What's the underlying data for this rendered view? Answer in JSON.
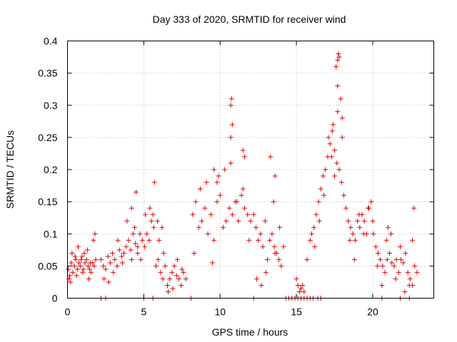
{
  "chart_data": {
    "type": "scatter",
    "title": "Day 333 of 2020, SRMTID for receiver wind",
    "xlabel": "GPS time / hours",
    "ylabel": "SRMTID / TECUs",
    "xlim": [
      0,
      24
    ],
    "ylim": [
      0,
      0.4
    ],
    "xticks": [
      0,
      5,
      10,
      15,
      20
    ],
    "xtick_labels": [
      "0",
      "5",
      "10",
      "15",
      "20"
    ],
    "yticks": [
      0,
      0.05,
      0.1,
      0.15,
      0.2,
      0.25,
      0.3,
      0.35,
      0.4
    ],
    "ytick_labels": [
      "0",
      "0.05",
      "0.1",
      "0.15",
      "0.2",
      "0.25",
      "0.3",
      "0.35",
      "0.4"
    ],
    "grid": true,
    "marker": "+",
    "color": "#e00000",
    "series": [
      {
        "name": "SRMTID",
        "x": [
          0.05,
          0.15,
          0.25,
          0.35,
          0.45,
          0.55,
          0.65,
          0.75,
          0.85,
          0.95,
          1.05,
          1.15,
          1.25,
          1.35,
          1.45,
          1.55,
          1.65,
          1.75,
          1.85,
          0.1,
          0.3,
          0.5,
          0.7,
          0.9,
          1.1,
          1.3,
          1.5,
          1.7,
          0.2,
          0.6,
          1.0,
          1.4,
          1.8,
          2.2,
          2.35,
          2.5,
          2.65,
          2.8,
          2.95,
          3.1,
          3.25,
          3.4,
          3.55,
          3.7,
          3.85,
          4.0,
          4.15,
          4.3,
          4.45,
          4.6,
          4.75,
          4.9,
          2.4,
          2.7,
          3.0,
          3.3,
          3.6,
          3.9,
          4.2,
          4.5,
          4.8,
          4.2,
          4.4,
          4.6,
          5.05,
          5.2,
          5.35,
          5.5,
          5.65,
          5.8,
          5.95,
          6.1,
          6.25,
          6.4,
          6.55,
          6.7,
          6.85,
          7.0,
          7.15,
          7.3,
          7.45,
          7.6,
          7.75,
          5.1,
          5.4,
          5.7,
          6.0,
          6.3,
          6.6,
          6.9,
          7.2,
          7.5,
          5.6,
          5.9,
          6.2,
          8.2,
          8.4,
          8.6,
          8.8,
          9.0,
          9.2,
          9.4,
          9.6,
          9.8,
          10.0,
          10.2,
          10.4,
          10.6,
          10.8,
          11.0,
          11.2,
          11.4,
          11.6,
          11.8,
          12.0,
          8.3,
          8.7,
          9.1,
          9.5,
          9.9,
          10.3,
          10.7,
          11.1,
          11.5,
          11.9,
          10.7,
          10.75,
          10.8,
          10.7,
          11.5,
          11.6,
          9.6,
          9.8,
          12.2,
          12.35,
          12.5,
          12.65,
          12.8,
          12.95,
          13.1,
          13.25,
          13.4,
          13.55,
          13.7,
          13.85,
          14.0,
          14.15,
          12.4,
          12.7,
          13.0,
          13.3,
          13.6,
          13.9,
          13.5,
          13.6,
          15.0,
          15.1,
          15.2,
          15.3,
          15.4,
          15.5,
          15.7,
          15.9,
          16.0,
          16.15,
          16.3,
          16.45,
          16.6,
          16.75,
          16.9,
          17.05,
          17.2,
          17.35,
          17.5,
          17.65,
          17.8,
          17.95,
          18.1,
          18.25,
          16.2,
          16.5,
          16.8,
          17.1,
          17.4,
          17.7,
          18.0,
          17.6,
          17.7,
          17.75,
          17.8,
          17.7,
          17.9,
          18.0,
          17.3,
          17.5,
          18.4,
          18.55,
          18.7,
          18.85,
          19.0,
          19.15,
          19.3,
          19.45,
          19.6,
          19.75,
          19.9,
          20.05,
          20.2,
          20.35,
          18.5,
          18.8,
          19.1,
          19.4,
          19.7,
          20.0,
          20.3,
          20.5,
          20.65,
          20.8,
          20.95,
          21.1,
          21.25,
          21.4,
          21.55,
          21.7,
          21.85,
          22.0,
          22.15,
          22.3,
          22.45,
          22.6,
          22.75,
          22.9,
          20.6,
          20.9,
          21.2,
          21.5,
          21.8,
          22.1,
          22.4,
          22.7,
          21.0,
          22.6,
          2.2,
          2.5,
          5.0,
          5.6,
          8.1,
          12.2,
          14.3,
          14.5,
          14.7,
          14.9,
          15.1,
          15.3,
          15.5,
          15.7,
          15.9,
          16.1,
          16.4,
          16.6,
          20.6,
          21.8,
          22.4
        ],
        "y": [
          0.045,
          0.035,
          0.055,
          0.04,
          0.05,
          0.06,
          0.045,
          0.055,
          0.05,
          0.065,
          0.045,
          0.055,
          0.06,
          0.05,
          0.045,
          0.04,
          0.055,
          0.05,
          0.06,
          0.03,
          0.07,
          0.065,
          0.08,
          0.06,
          0.07,
          0.075,
          0.055,
          0.09,
          0.025,
          0.035,
          0.04,
          0.03,
          0.1,
          0.06,
          0.05,
          0.045,
          0.065,
          0.055,
          0.07,
          0.06,
          0.05,
          0.075,
          0.065,
          0.07,
          0.08,
          0.09,
          0.075,
          0.1,
          0.085,
          0.08,
          0.1,
          0.09,
          0.03,
          0.025,
          0.04,
          0.09,
          0.055,
          0.12,
          0.14,
          0.165,
          0.06,
          0.06,
          0.11,
          0.07,
          0.08,
          0.1,
          0.09,
          0.12,
          0.11,
          0.05,
          0.06,
          0.04,
          0.03,
          0.05,
          0.02,
          0.03,
          0.04,
          0.05,
          0.035,
          0.03,
          0.02,
          0.04,
          0.03,
          0.13,
          0.14,
          0.18,
          0.09,
          0.07,
          0.01,
          0.015,
          0.06,
          0.045,
          0.13,
          0.12,
          0.11,
          0.13,
          0.15,
          0.11,
          0.12,
          0.14,
          0.1,
          0.13,
          0.09,
          0.15,
          0.16,
          0.11,
          0.12,
          0.14,
          0.13,
          0.15,
          0.12,
          0.16,
          0.14,
          0.13,
          0.12,
          0.07,
          0.17,
          0.18,
          0.055,
          0.19,
          0.2,
          0.21,
          0.15,
          0.17,
          0.09,
          0.3,
          0.31,
          0.27,
          0.25,
          0.23,
          0.22,
          0.2,
          0.18,
          0.13,
          0.11,
          0.09,
          0.1,
          0.08,
          0.12,
          0.06,
          0.09,
          0.1,
          0.08,
          0.07,
          0.06,
          0.05,
          0.08,
          0.03,
          0.02,
          0.04,
          0.22,
          0.07,
          0.11,
          0.15,
          0.19,
          0.03,
          0.02,
          0.01,
          0.015,
          0.02,
          0.01,
          0.06,
          0.09,
          0.1,
          0.11,
          0.13,
          0.15,
          0.17,
          0.19,
          0.2,
          0.22,
          0.24,
          0.26,
          0.23,
          0.21,
          0.2,
          0.18,
          0.16,
          0.14,
          0.08,
          0.12,
          0.16,
          0.25,
          0.27,
          0.29,
          0.25,
          0.36,
          0.37,
          0.38,
          0.375,
          0.33,
          0.31,
          0.28,
          0.22,
          0.19,
          0.12,
          0.11,
          0.1,
          0.09,
          0.12,
          0.11,
          0.13,
          0.12,
          0.1,
          0.14,
          0.15,
          0.1,
          0.08,
          0.07,
          0.09,
          0.06,
          0.13,
          0.1,
          0.14,
          0.12,
          0.05,
          0.06,
          0.05,
          0.04,
          0.06,
          0.07,
          0.055,
          0.05,
          0.06,
          0.04,
          0.06,
          0.055,
          0.07,
          0.04,
          0.03,
          0.02,
          0.05,
          0.04,
          0.02,
          0.09,
          0.1,
          0.03,
          0.08,
          0.01,
          0.02,
          0.14,
          0.11,
          0.09,
          0,
          0,
          0,
          0,
          0,
          0,
          0,
          0,
          0,
          0,
          0,
          0,
          0,
          0,
          0,
          0,
          0,
          0,
          0,
          0,
          0
        ]
      }
    ]
  }
}
